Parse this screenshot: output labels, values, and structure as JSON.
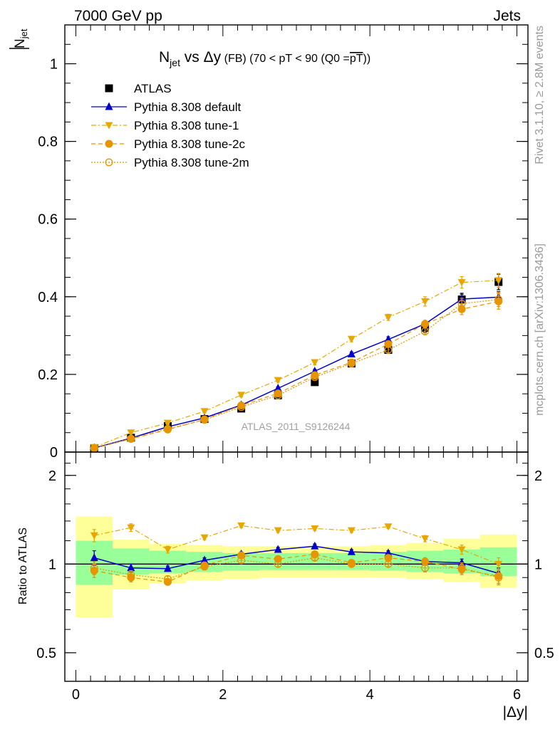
{
  "header": {
    "left": "7000 GeV pp",
    "right": "Jets"
  },
  "side": {
    "rivet": "Rivet 3.1.10, ≥ 2.8M events",
    "mcplots": "mcplots.cern.ch [arXiv:1306.3436]"
  },
  "colors": {
    "data": "#000000",
    "default": "#0000cc",
    "tune1": "#e6a800",
    "tune2c": "#e69500",
    "tune2m": "#e69500",
    "band_inner": "#99ff99",
    "band_outer": "#ffff99"
  },
  "chart_data": [
    {
      "type": "scatter",
      "title": "N_jet vs Δy (FB) (70 < pT < 90 (Q0 = pT))",
      "title_parts": {
        "n": "N",
        "n_sub": "jet",
        "vs": " vs ",
        "dy": "Δy",
        "fb": " (FB) ",
        "range": "(70 < pT <  90 (Q0 =",
        "pt": "pT",
        "close": "))"
      },
      "ylabel": "N_jet",
      "ylabel_parts": {
        "main": "N",
        "sub": "jet"
      },
      "ylim": [
        0,
        1.1
      ],
      "xlim": [
        -0.15,
        6.15
      ],
      "yticks": [
        0,
        0.2,
        0.4,
        0.6,
        0.8,
        1
      ],
      "ytick_labels": [
        "0",
        "0.2",
        "0.4",
        "0.6",
        "0.8",
        "1"
      ],
      "watermark": "ATLAS_2011_S9126244",
      "legend_position": "top-left",
      "x": [
        0.25,
        0.75,
        1.25,
        1.75,
        2.25,
        2.75,
        3.25,
        3.75,
        4.25,
        4.75,
        5.25,
        5.75
      ],
      "series": [
        {
          "name": "ATLAS",
          "key": "data",
          "marker": "square",
          "line": "none",
          "values": [
            0.01,
            0.037,
            0.067,
            0.085,
            0.112,
            0.146,
            0.18,
            0.228,
            0.263,
            0.32,
            0.393,
            0.438
          ],
          "errors": [
            0.002,
            0.003,
            0.004,
            0.004,
            0.005,
            0.006,
            0.007,
            0.008,
            0.009,
            0.012,
            0.016,
            0.02
          ]
        },
        {
          "name": "Pythia 8.308 default",
          "key": "default",
          "marker": "triangle-up",
          "line": "solid",
          "values": [
            0.0105,
            0.036,
            0.065,
            0.088,
            0.121,
            0.164,
            0.208,
            0.252,
            0.29,
            0.33,
            0.394,
            0.399
          ],
          "errors": [
            0.001,
            0.002,
            0.002,
            0.003,
            0.003,
            0.004,
            0.005,
            0.006,
            0.007,
            0.008,
            0.012,
            0.014
          ]
        },
        {
          "name": "Pythia 8.308 tune-1",
          "key": "tune1",
          "marker": "triangle-down",
          "line": "dashdot",
          "values": [
            0.0125,
            0.05,
            0.075,
            0.105,
            0.147,
            0.185,
            0.231,
            0.291,
            0.347,
            0.388,
            0.437,
            0.442
          ],
          "errors": [
            0.001,
            0.003,
            0.004,
            0.004,
            0.005,
            0.005,
            0.006,
            0.007,
            0.008,
            0.012,
            0.015,
            0.018
          ]
        },
        {
          "name": "Pythia 8.308 tune-2c",
          "key": "tune2c",
          "marker": "circle",
          "line": "dashed",
          "values": [
            0.0095,
            0.034,
            0.058,
            0.084,
            0.12,
            0.151,
            0.198,
            0.231,
            0.278,
            0.33,
            0.368,
            0.388
          ],
          "errors": [
            0.001,
            0.002,
            0.003,
            0.003,
            0.004,
            0.004,
            0.005,
            0.006,
            0.007,
            0.009,
            0.014,
            0.02
          ]
        },
        {
          "name": "Pythia 8.308 tune-2m",
          "key": "tune2m",
          "marker": "circle-open",
          "line": "dotted",
          "values": [
            0.0098,
            0.035,
            0.06,
            0.083,
            0.116,
            0.146,
            0.193,
            0.228,
            0.263,
            0.311,
            0.382,
            0.393
          ],
          "errors": [
            0.001,
            0.002,
            0.003,
            0.003,
            0.004,
            0.004,
            0.005,
            0.006,
            0.007,
            0.009,
            0.014,
            0.018
          ]
        }
      ]
    },
    {
      "type": "scatter",
      "title": "",
      "xlabel": "|Δy|",
      "ylabel": "Ratio to ATLAS",
      "ylog": true,
      "ylim": [
        0.4,
        2.4
      ],
      "xlim": [
        -0.15,
        6.15
      ],
      "xticks": [
        0,
        2,
        4,
        6
      ],
      "xtick_labels": [
        "0",
        "2",
        "4",
        "6"
      ],
      "yticks": [
        0.5,
        1,
        2
      ],
      "ytick_labels": [
        "0.5",
        "1",
        "2"
      ],
      "bands": {
        "edges": [
          0,
          0.5,
          1.0,
          1.5,
          2.0,
          2.5,
          3.0,
          3.5,
          4.0,
          4.5,
          5.0,
          5.5,
          6.0
        ],
        "inner_lo": [
          0.85,
          0.92,
          0.93,
          0.94,
          0.95,
          0.955,
          0.955,
          0.955,
          0.95,
          0.94,
          0.93,
          0.91
        ],
        "inner_hi": [
          1.2,
          1.13,
          1.11,
          1.1,
          1.09,
          1.09,
          1.09,
          1.09,
          1.1,
          1.11,
          1.12,
          1.14
        ],
        "outer_lo": [
          0.66,
          0.82,
          0.86,
          0.88,
          0.89,
          0.9,
          0.9,
          0.9,
          0.9,
          0.89,
          0.87,
          0.83
        ],
        "outer_hi": [
          1.45,
          1.21,
          1.17,
          1.16,
          1.15,
          1.15,
          1.15,
          1.15,
          1.16,
          1.18,
          1.22,
          1.26
        ]
      },
      "series": [
        {
          "name": "Pythia 8.308 default",
          "key": "default",
          "marker": "triangle-up",
          "line": "solid",
          "values": [
            1.05,
            0.97,
            0.965,
            1.03,
            1.08,
            1.12,
            1.15,
            1.1,
            1.09,
            1.02,
            1.01,
            0.93
          ],
          "errors": [
            0.06,
            0.03,
            0.02,
            0.02,
            0.02,
            0.02,
            0.02,
            0.02,
            0.02,
            0.02,
            0.03,
            0.04
          ]
        },
        {
          "name": "Pythia 8.308 tune-1",
          "key": "tune1",
          "marker": "triangle-down",
          "line": "dashdot",
          "values": [
            1.25,
            1.33,
            1.12,
            1.23,
            1.35,
            1.3,
            1.32,
            1.3,
            1.34,
            1.22,
            1.12,
            1.0
          ],
          "errors": [
            0.06,
            0.04,
            0.03,
            0.02,
            0.02,
            0.02,
            0.02,
            0.02,
            0.02,
            0.03,
            0.04,
            0.05
          ]
        },
        {
          "name": "Pythia 8.308 tune-2c",
          "key": "tune2c",
          "marker": "circle",
          "line": "dashed",
          "values": [
            0.95,
            0.9,
            0.87,
            0.99,
            1.07,
            1.04,
            1.08,
            1.01,
            1.05,
            1.02,
            0.96,
            0.91
          ],
          "errors": [
            0.05,
            0.03,
            0.02,
            0.02,
            0.02,
            0.02,
            0.02,
            0.02,
            0.02,
            0.03,
            0.04,
            0.05
          ]
        },
        {
          "name": "Pythia 8.308 tune-2m",
          "key": "tune2m",
          "marker": "circle-open",
          "line": "dotted",
          "values": [
            0.97,
            0.92,
            0.89,
            0.98,
            1.03,
            1.0,
            1.05,
            1.0,
            1.0,
            0.97,
            0.97,
            0.9
          ],
          "errors": [
            0.05,
            0.03,
            0.02,
            0.02,
            0.02,
            0.02,
            0.02,
            0.02,
            0.02,
            0.03,
            0.04,
            0.05
          ]
        }
      ]
    }
  ]
}
